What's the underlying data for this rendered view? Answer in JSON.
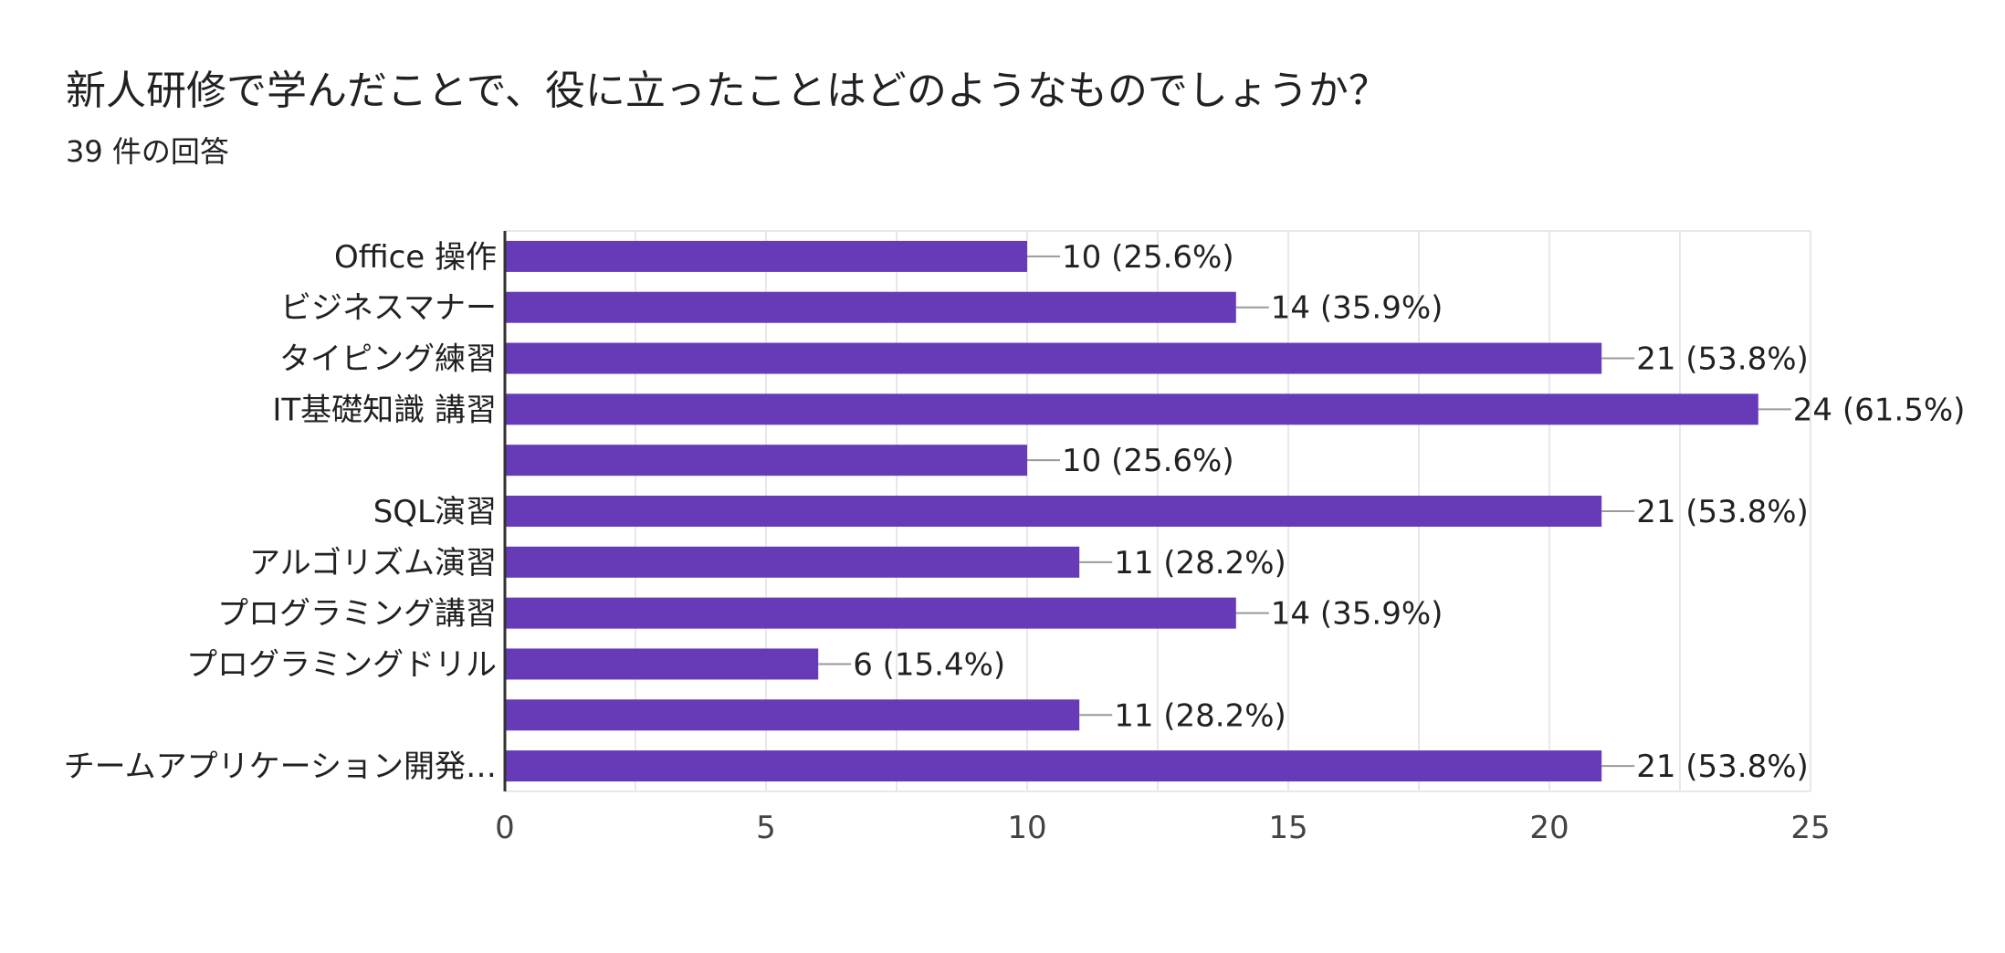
{
  "header": {
    "title": "新人研修で学んだことで、役に立ったことはどのようなものでしょうか？",
    "response_count": "39 件の回答"
  },
  "colors": {
    "bar": "#673ab7",
    "grid": "#e8e8e8",
    "axis": "#333333",
    "leader": "#999999",
    "text": "#212121",
    "tick_text": "#444444"
  },
  "chart_data": {
    "type": "bar",
    "orientation": "horizontal",
    "title": "新人研修で学んだことで、役に立ったことはどのようなものでしょうか？",
    "subtitle": "39 件の回答",
    "categories": [
      "Office 操作",
      "ビジネスマナー",
      "タイピング練習",
      "IT基礎知識 講習",
      "",
      "SQL演習",
      "アルゴリズム演習",
      "プログラミング講習",
      "プログラミングドリル",
      "",
      "チームアプリケーション開発…"
    ],
    "values": [
      10,
      14,
      21,
      24,
      10,
      21,
      11,
      14,
      6,
      11,
      21
    ],
    "data_labels": [
      "10 (25.6%)",
      "14 (35.9%)",
      "21 (53.8%)",
      "24 (61.5%)",
      "10 (25.6%)",
      "21 (53.8%)",
      "11 (28.2%)",
      "14 (35.9%)",
      "6 (15.4%)",
      "11 (28.2%)",
      "21 (53.8%)"
    ],
    "x_ticks": [
      "0",
      "5",
      "10",
      "15",
      "20",
      "25"
    ],
    "xlim": [
      0,
      25
    ],
    "xlabel": "",
    "ylabel": "",
    "grid": true
  }
}
